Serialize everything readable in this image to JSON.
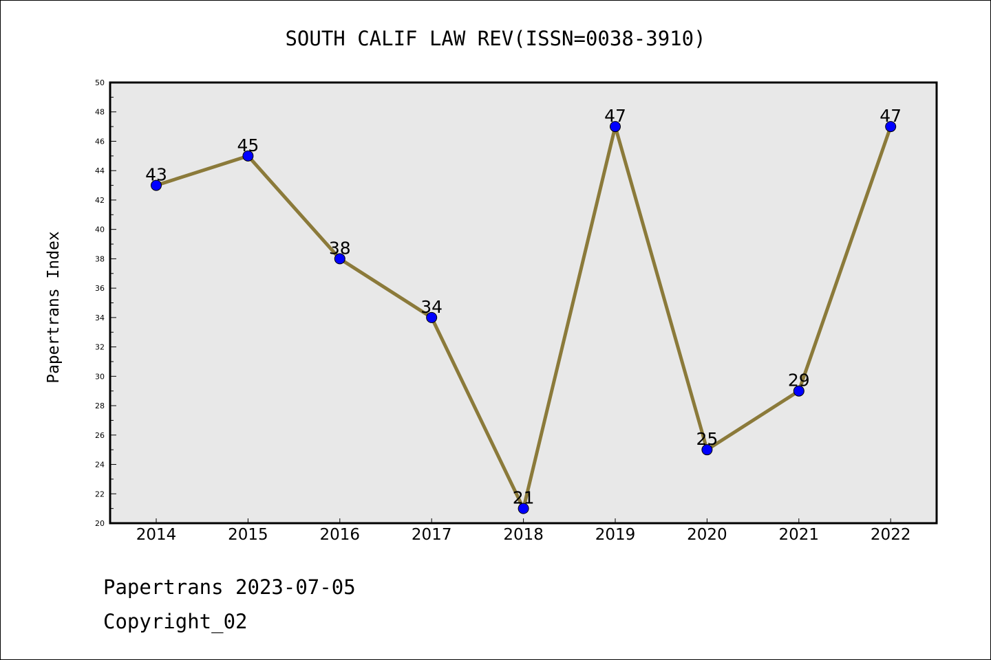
{
  "chart_data": {
    "type": "line",
    "title": "SOUTH CALIF LAW REV(ISSN=0038-3910)",
    "xlabel": "",
    "ylabel": "Papertrans Index",
    "categories": [
      "2014",
      "2015",
      "2016",
      "2017",
      "2018",
      "2019",
      "2020",
      "2021",
      "2022"
    ],
    "values": [
      43,
      45,
      38,
      34,
      21,
      47,
      25,
      29,
      47
    ],
    "ylim": [
      20,
      50
    ],
    "yticks": [
      20,
      22,
      24,
      26,
      28,
      30,
      32,
      34,
      36,
      38,
      40,
      42,
      44,
      46,
      48,
      50
    ],
    "grid": false,
    "line_color": "#8b7a3a",
    "marker_color": "#0000ff",
    "plot_background": "#e8e8e8"
  },
  "footer": {
    "line1": "Papertrans 2023-07-05",
    "line2": "Copyright_02"
  }
}
